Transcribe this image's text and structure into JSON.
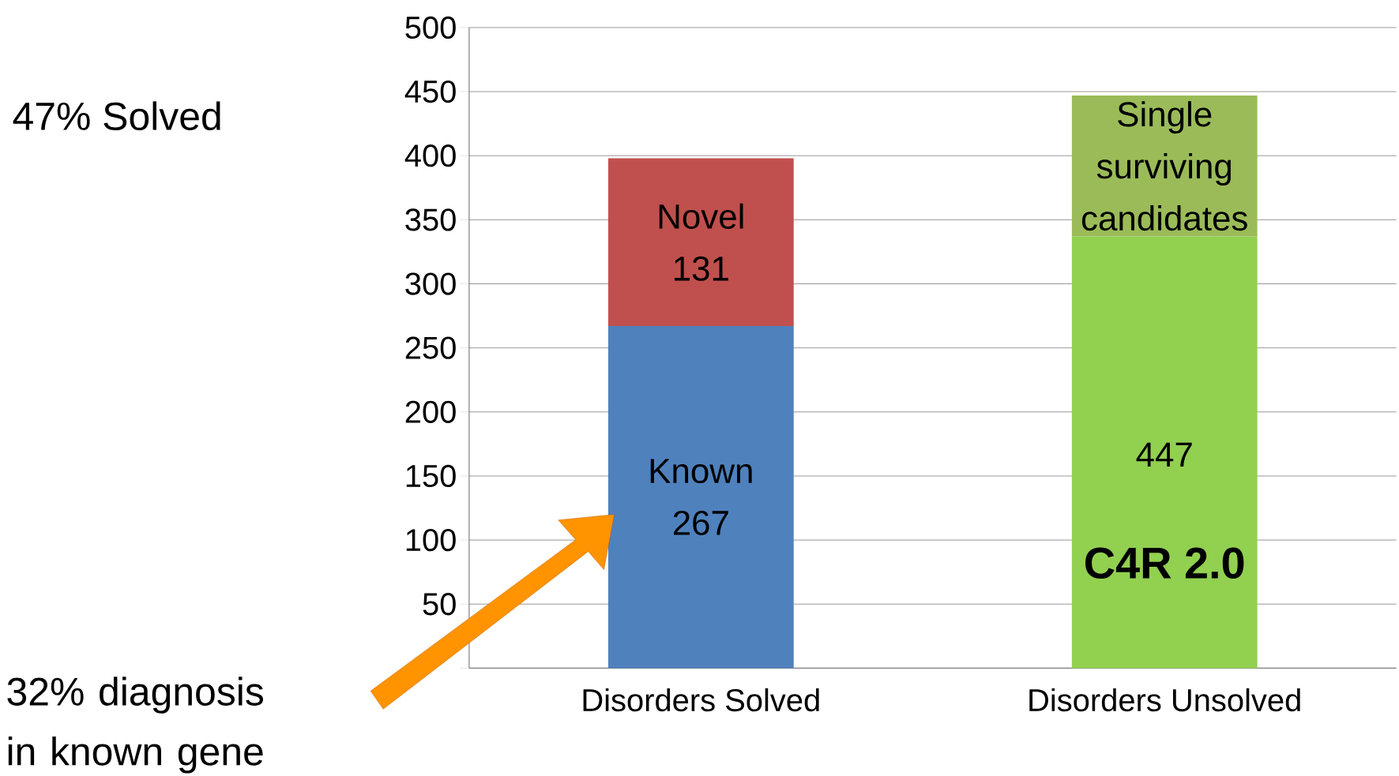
{
  "chart_data": {
    "type": "bar",
    "stacked": true,
    "categories": [
      "Disorders Solved",
      "Disorders Unsolved"
    ],
    "series": [
      {
        "name": "Known",
        "color": "#4f81bd",
        "values": [
          267,
          null
        ],
        "value_labels": [
          "267",
          null
        ]
      },
      {
        "name": "Novel",
        "color": "#c0504d",
        "values": [
          131,
          null
        ],
        "value_labels": [
          "131",
          null
        ]
      },
      {
        "color": "#92d050",
        "values": [
          null,
          337
        ]
      },
      {
        "name": "Single surviving candidates",
        "color": "#9bbb59",
        "values": [
          null,
          110
        ]
      }
    ],
    "totals": [
      null,
      "447"
    ],
    "ylim": [
      0,
      500
    ],
    "yticks": [
      {
        "value": 0,
        "label": null
      },
      50,
      100,
      150,
      200,
      250,
      300,
      350,
      400,
      450,
      500
    ],
    "grid": "y",
    "annotations": [
      "47% Solved",
      "32% diagnosis in known gene",
      "C4R 2.0"
    ]
  }
}
